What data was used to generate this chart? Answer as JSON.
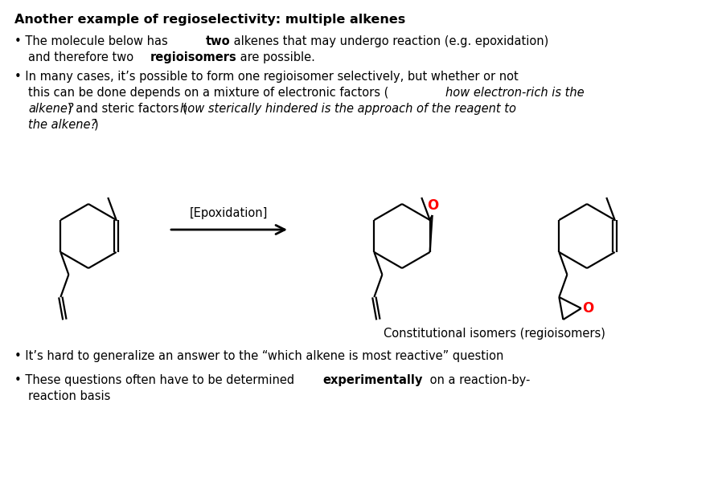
{
  "title": "Another example of regioselectivity: multiple alkenes",
  "background_color": "#ffffff",
  "text_color": "#000000",
  "red_color": "#ff0000",
  "line_color": "#000000",
  "arrow_label": "[Epoxidation]",
  "caption": "Constitutional isomers (regioisomers)"
}
